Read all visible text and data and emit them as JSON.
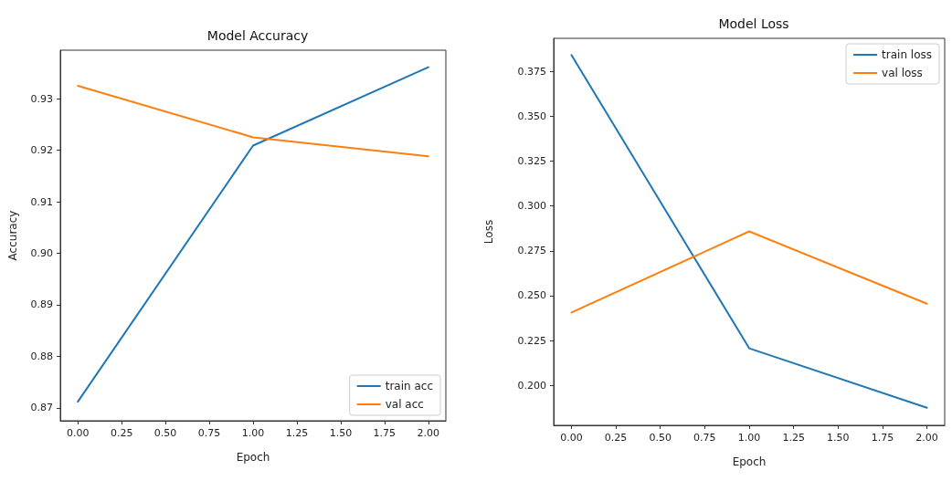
{
  "chart_data": [
    {
      "type": "line",
      "title": "Model Accuracy",
      "xlabel": "Epoch",
      "ylabel": "Accuracy",
      "x": [
        0,
        1,
        2
      ],
      "series": [
        {
          "name": "train acc",
          "color": "#1f77b4",
          "values": [
            0.8712,
            0.9209,
            0.9361
          ]
        },
        {
          "name": "val acc",
          "color": "#ff7f0e",
          "values": [
            0.9325,
            0.9225,
            0.9188
          ]
        }
      ],
      "xlim": [
        -0.1,
        2.1
      ],
      "ylim": [
        0.8675,
        0.9394
      ],
      "xticks": [
        {
          "value": 0,
          "label": "0.00"
        },
        {
          "value": 0.25,
          "label": "0.25"
        },
        {
          "value": 0.5,
          "label": "0.50"
        },
        {
          "value": 0.75,
          "label": "0.75"
        },
        {
          "value": 1,
          "label": "1.00"
        },
        {
          "value": 1.25,
          "label": "1.25"
        },
        {
          "value": 1.5,
          "label": "1.50"
        },
        {
          "value": 1.75,
          "label": "1.75"
        },
        {
          "value": 2,
          "label": "2.00"
        }
      ],
      "yticks": [
        0.87,
        0.88,
        0.89,
        {
          "value": 0.9,
          "label": "0.90"
        },
        0.91,
        0.92,
        0.93
      ],
      "legend": "bottom right",
      "marker": "none",
      "line_style": "solid",
      "grid": false
    },
    {
      "type": "line",
      "title": "Model Loss",
      "xlabel": "Epoch",
      "ylabel": "Loss",
      "x": [
        0,
        1,
        2
      ],
      "series": [
        {
          "name": "train loss",
          "color": "#1f77b4",
          "values": [
            0.384,
            0.2207,
            0.1876
          ]
        },
        {
          "name": "val loss",
          "color": "#ff7f0e",
          "values": [
            0.2406,
            0.2858,
            0.2455
          ]
        }
      ],
      "xlim": [
        -0.1,
        2.1
      ],
      "ylim": [
        0.1778,
        0.3933
      ],
      "xticks": [
        {
          "value": 0,
          "label": "0.00"
        },
        {
          "value": 0.25,
          "label": "0.25"
        },
        {
          "value": 0.5,
          "label": "0.50"
        },
        {
          "value": 0.75,
          "label": "0.75"
        },
        {
          "value": 1,
          "label": "1.00"
        },
        {
          "value": 1.25,
          "label": "1.25"
        },
        {
          "value": 1.5,
          "label": "1.50"
        },
        {
          "value": 1.75,
          "label": "1.75"
        },
        {
          "value": 2,
          "label": "2.00"
        }
      ],
      "yticks": [
        {
          "value": 0.2,
          "label": "0.200"
        },
        0.225,
        {
          "value": 0.25,
          "label": "0.250"
        },
        0.275,
        {
          "value": 0.3,
          "label": "0.300"
        },
        0.325,
        {
          "value": 0.35,
          "label": "0.350"
        },
        0.375
      ],
      "legend": "top right",
      "marker": "none",
      "line_style": "solid",
      "grid": false
    }
  ]
}
